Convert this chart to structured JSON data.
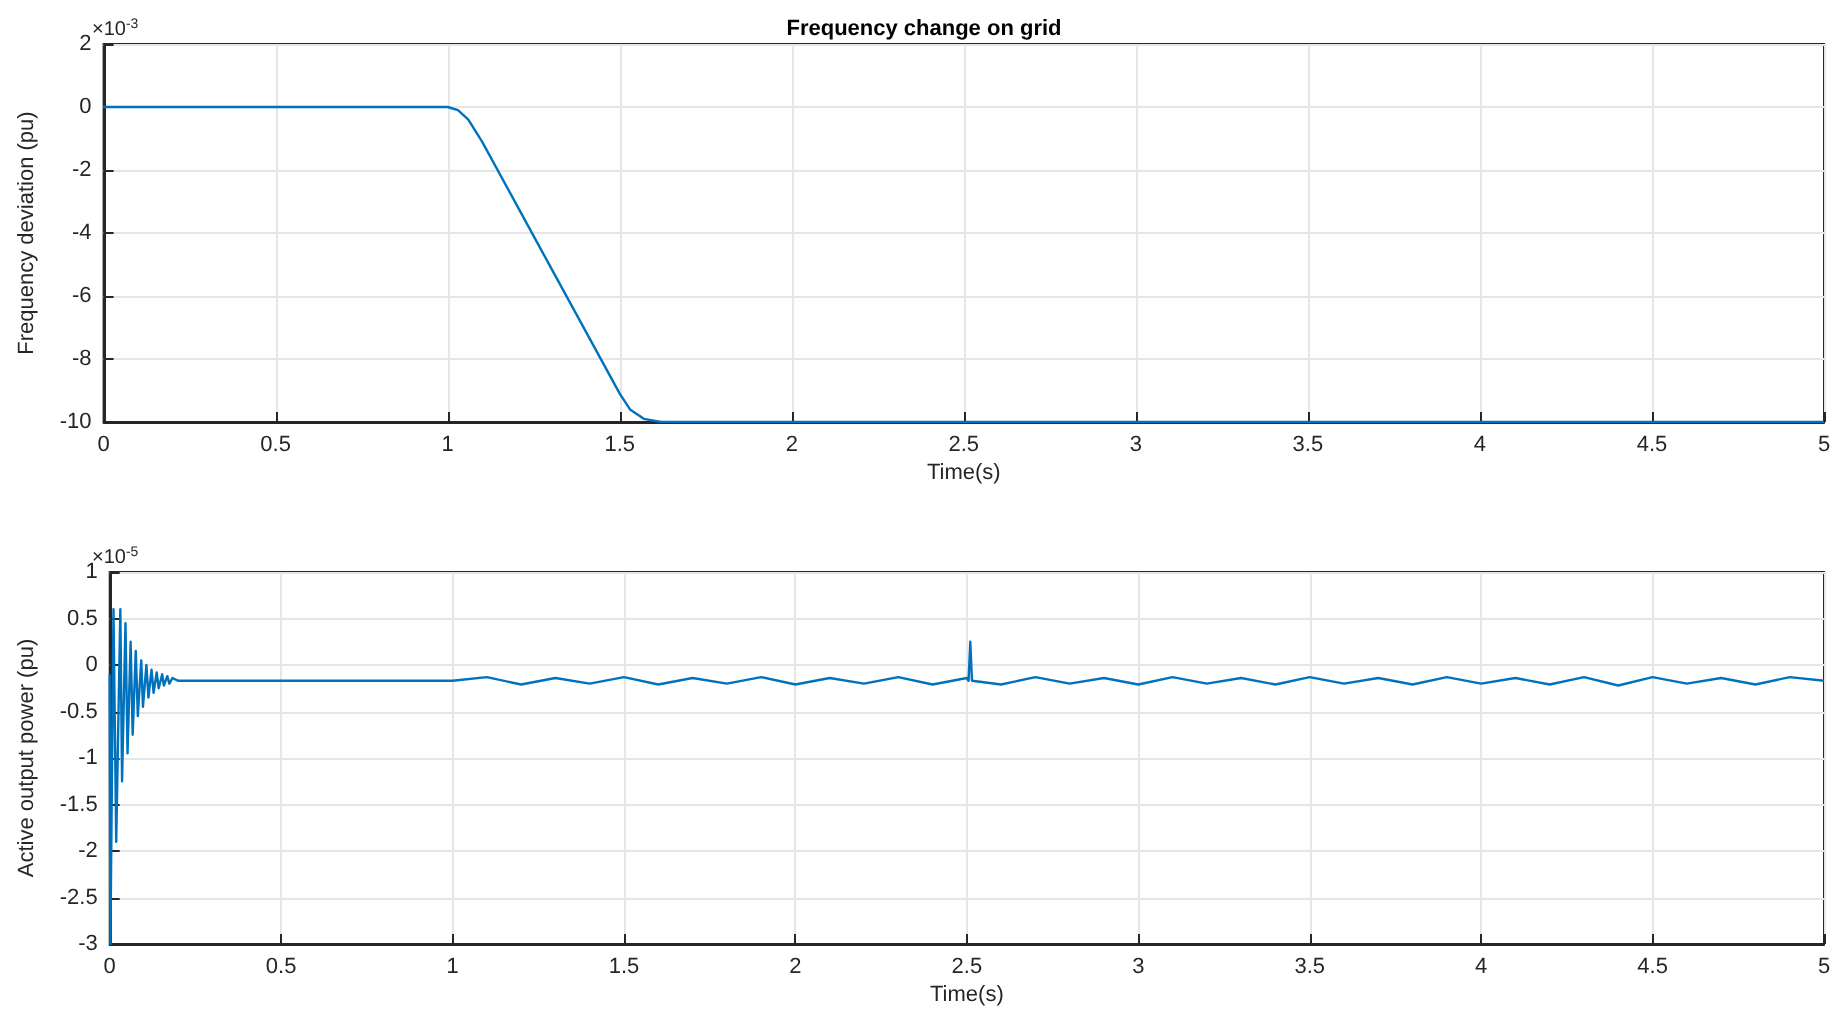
{
  "chart_data": [
    {
      "type": "line",
      "title": "Frequency change on grid",
      "xlabel": "Time(s)",
      "ylabel": "Frequency deviation (pu)",
      "annotations": [
        "×10$^{-3}$"
      ],
      "xlim": [
        0,
        5
      ],
      "xticks": [
        0,
        0.5,
        1,
        1.5,
        2,
        2.5,
        3,
        3.5,
        4,
        4.5,
        5
      ],
      "ylim": [
        -10,
        2
      ],
      "yticks": [
        -10,
        -8,
        -6,
        -4,
        -2,
        0,
        2
      ],
      "grid": true,
      "x": [
        0,
        1,
        1.03,
        1.06,
        1.1,
        1.2,
        1.3,
        1.4,
        1.5,
        1.53,
        1.57,
        1.62,
        2,
        5
      ],
      "series": [
        {
          "color": "#0072bd",
          "values": [
            0,
            0,
            -0.1,
            -0.4,
            -1.1,
            -3.1,
            -5.1,
            -7.1,
            -9.1,
            -9.6,
            -9.9,
            -10,
            -10,
            -10
          ]
        }
      ]
    },
    {
      "type": "line",
      "xlabel": "Time(s)",
      "ylabel": "Active output power (pu)",
      "annotations": [
        "×10$^{-5}$"
      ],
      "xlim": [
        0,
        5
      ],
      "xticks": [
        0,
        0.5,
        1,
        1.5,
        2,
        2.5,
        3,
        3.5,
        4,
        4.5,
        5
      ],
      "ylim": [
        -3,
        1
      ],
      "yticks": [
        -3,
        -2.5,
        -2,
        -1.5,
        -1,
        -0.5,
        0,
        0.5,
        1
      ],
      "grid": true,
      "x": [
        0,
        0.002,
        0.011,
        0.019,
        0.031,
        0.036,
        0.046,
        0.052,
        0.061,
        0.067,
        0.076,
        0.082,
        0.092,
        0.097,
        0.107,
        0.113,
        0.122,
        0.128,
        0.137,
        0.143,
        0.153,
        0.158,
        0.168,
        0.174,
        0.183,
        0.2,
        1,
        1.1,
        1.2,
        1.3,
        1.4,
        1.5,
        1.6,
        1.7,
        1.8,
        1.9,
        2,
        2.1,
        2.2,
        2.3,
        2.4,
        2.5,
        2.505,
        2.51,
        2.515,
        2.6,
        2.7,
        2.8,
        2.9,
        3,
        3.1,
        3.2,
        3.3,
        3.4,
        3.5,
        3.6,
        3.7,
        3.8,
        3.9,
        4,
        4.1,
        4.2,
        4.3,
        4.4,
        4.5,
        4.6,
        4.7,
        4.8,
        4.9,
        5
      ],
      "series": [
        {
          "color": "#0072bd",
          "values": [
            -0.1,
            -3,
            0.6,
            -1.9,
            0.6,
            -1.25,
            0.45,
            -0.95,
            0.25,
            -0.75,
            0.15,
            -0.55,
            0.05,
            -0.45,
            0,
            -0.35,
            -0.05,
            -0.3,
            -0.08,
            -0.25,
            -0.1,
            -0.22,
            -0.12,
            -0.2,
            -0.14,
            -0.17,
            -0.17,
            -0.13,
            -0.21,
            -0.14,
            -0.2,
            -0.13,
            -0.21,
            -0.14,
            -0.2,
            -0.13,
            -0.21,
            -0.14,
            -0.2,
            -0.13,
            -0.21,
            -0.14,
            -0.17,
            0.25,
            -0.17,
            -0.21,
            -0.13,
            -0.2,
            -0.14,
            -0.21,
            -0.13,
            -0.2,
            -0.14,
            -0.21,
            -0.13,
            -0.2,
            -0.14,
            -0.21,
            -0.13,
            -0.2,
            -0.14,
            -0.21,
            -0.13,
            -0.22,
            -0.13,
            -0.2,
            -0.14,
            -0.21,
            -0.13,
            -0.17
          ]
        }
      ]
    }
  ]
}
